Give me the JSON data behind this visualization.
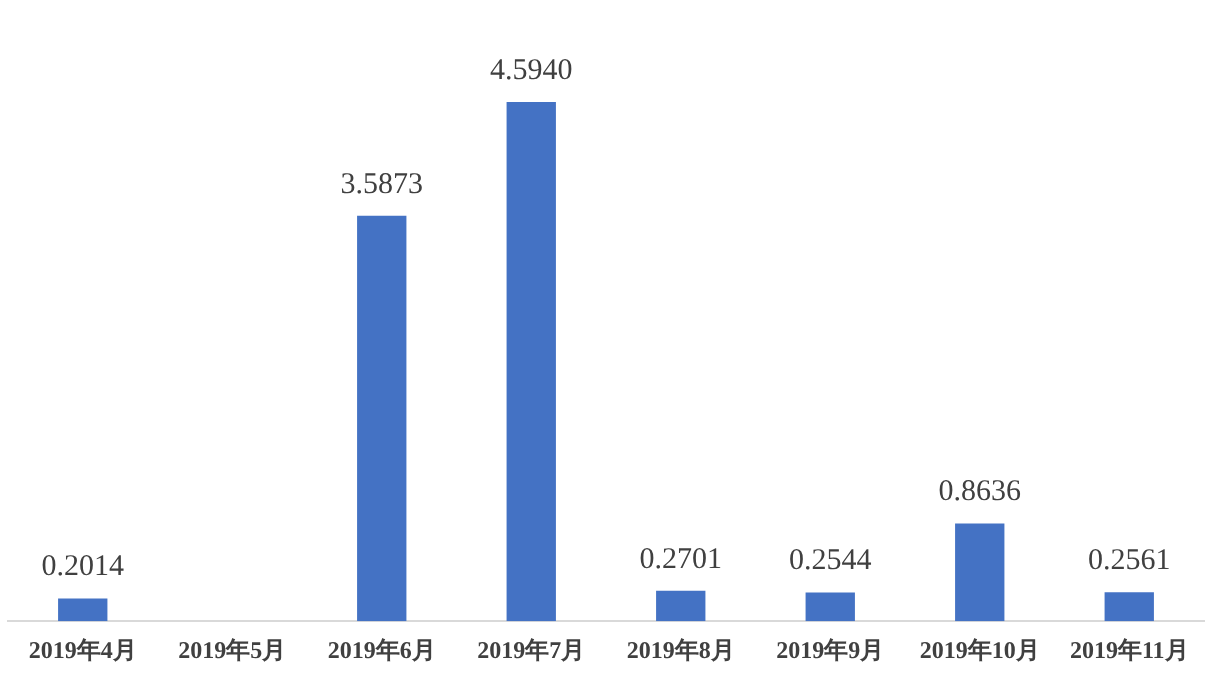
{
  "chart_data": {
    "type": "bar",
    "categories": [
      "2019年4月",
      "2019年5月",
      "2019年6月",
      "2019年7月",
      "2019年8月",
      "2019年9月",
      "2019年10月",
      "2019年11月"
    ],
    "values": [
      0.2014,
      null,
      3.5873,
      4.594,
      0.2701,
      0.2544,
      0.8636,
      0.2561
    ],
    "value_labels": [
      "0.2014",
      null,
      "3.5873",
      "4.5940",
      "0.2701",
      "0.2544",
      "0.8636",
      "0.2561"
    ],
    "color": "#4472c4",
    "grid": false,
    "legend": false,
    "tick_labels": "x"
  }
}
